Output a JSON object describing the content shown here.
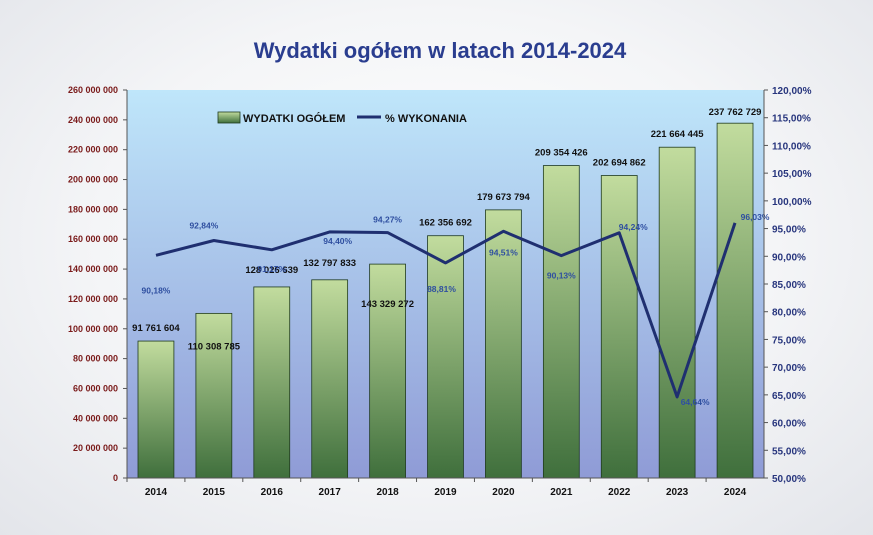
{
  "chart_data": {
    "type": "bar",
    "title": "Wydatki ogółem w latach 2014-2024",
    "categories": [
      "2014",
      "2015",
      "2016",
      "2017",
      "2018",
      "2019",
      "2020",
      "2021",
      "2022",
      "2023",
      "2024"
    ],
    "series": [
      {
        "name": "WYDATKI OGÓŁEM",
        "type": "bar",
        "axis": "left",
        "values": [
          91761604,
          110308785,
          128026639,
          132797833,
          143329272,
          162356692,
          179673794,
          209354426,
          202694862,
          221664445,
          237762729
        ],
        "labels": [
          "91 761 604",
          "110 308 785",
          "128 026 639",
          "132 797 833",
          "143 329 272",
          "162 356 692",
          "179 673 794",
          "209 354 426",
          "202 694 862",
          "221 664 445",
          "237 762 729"
        ]
      },
      {
        "name": "% WYKONANIA",
        "type": "line",
        "axis": "right",
        "values": [
          90.18,
          92.84,
          91.17,
          94.4,
          94.27,
          88.81,
          94.51,
          90.13,
          94.24,
          64.64,
          96.03
        ],
        "labels": [
          "90,18%",
          "92,84%",
          "91,17%",
          "94,40%",
          "94,27%",
          "88,81%",
          "94,51%",
          "90,13%",
          "94,24%",
          "64,64%",
          "96,03%"
        ]
      }
    ],
    "left_axis": {
      "ylim": [
        0,
        260000000
      ],
      "ticks": [
        "0",
        "20 000 000",
        "40 000 000",
        "60 000 000",
        "80 000 000",
        "100 000 000",
        "120 000 000",
        "140 000 000",
        "160 000 000",
        "180 000 000",
        "200 000 000",
        "220 000 000",
        "240 000 000",
        "260 000 000"
      ]
    },
    "right_axis": {
      "ylim": [
        50,
        120
      ],
      "ticks": [
        "50,00%",
        "55,00%",
        "60,00%",
        "65,00%",
        "70,00%",
        "75,00%",
        "80,00%",
        "85,00%",
        "90,00%",
        "95,00%",
        "100,00%",
        "105,00%",
        "110,00%",
        "115,00%",
        "120,00%"
      ]
    },
    "legend_position": "top-left",
    "grid": false,
    "colors": {
      "bar_top": "#c2dc9e",
      "bar_bottom": "#3f6f3c",
      "bar_stroke": "#1f3a1f",
      "line": "#1f2f70",
      "plot_top": "#bfe6fa",
      "plot_bottom": "#8f9bd6",
      "title": "#2a3d8f",
      "left_axis": "#7a1a1a",
      "right_axis": "#27357d"
    }
  }
}
